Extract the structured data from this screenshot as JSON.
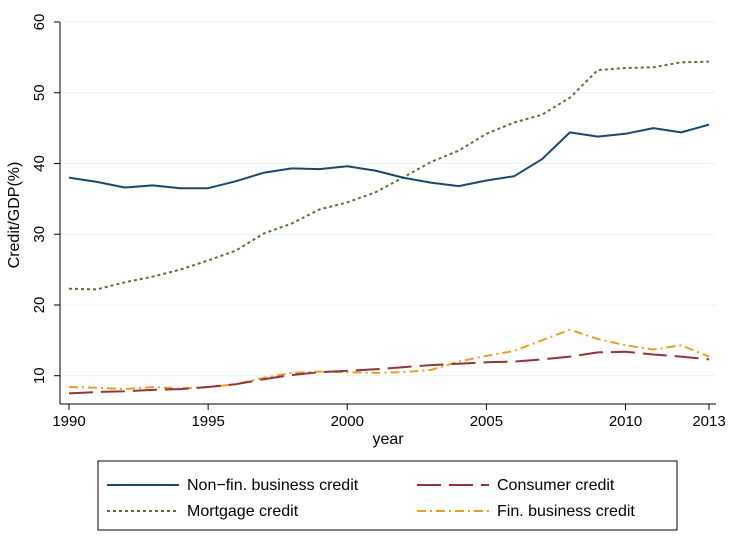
{
  "chart_data": {
    "type": "line",
    "xlabel": "year",
    "ylabel": "Credit/GDP(%)",
    "xlim": [
      1990,
      2013
    ],
    "ylim": [
      6,
      60
    ],
    "x_ticks": [
      "1990",
      "1995",
      "2000",
      "2005",
      "2010",
      "2013"
    ],
    "y_ticks": [
      "10",
      "20",
      "30",
      "40",
      "50",
      "60"
    ],
    "grid": "horizontal",
    "legend_position": "bottom",
    "x": [
      1990,
      1991,
      1992,
      1993,
      1994,
      1995,
      1996,
      1997,
      1998,
      1999,
      2000,
      2001,
      2002,
      2003,
      2004,
      2005,
      2006,
      2007,
      2008,
      2009,
      2010,
      2011,
      2012,
      2013
    ],
    "series": [
      {
        "name": "Non−fin. business credit",
        "color": "#1a476f",
        "dash": "solid",
        "values": [
          38.0,
          37.4,
          36.6,
          36.9,
          36.5,
          36.5,
          37.5,
          38.7,
          39.3,
          39.2,
          39.6,
          39.0,
          38.0,
          37.3,
          36.8,
          37.6,
          38.2,
          40.6,
          44.4,
          43.8,
          44.2,
          45.0,
          44.4,
          45.5
        ]
      },
      {
        "name": "Consumer credit",
        "color": "#90353b",
        "dash": "longdash",
        "values": [
          7.5,
          7.7,
          7.8,
          8.0,
          8.1,
          8.4,
          8.8,
          9.5,
          10.1,
          10.5,
          10.7,
          10.9,
          11.2,
          11.5,
          11.7,
          11.9,
          12.0,
          12.3,
          12.7,
          13.3,
          13.4,
          13.0,
          12.7,
          12.3
        ]
      },
      {
        "name": "Mortgage credit",
        "color": "#55752f",
        "dash": "dot",
        "values": [
          22.3,
          22.2,
          23.2,
          24.0,
          25.0,
          26.3,
          27.7,
          30.1,
          31.5,
          33.5,
          34.5,
          35.9,
          38.0,
          40.2,
          41.8,
          44.2,
          45.8,
          46.9,
          49.3,
          53.2,
          53.5,
          53.6,
          54.3,
          54.4
        ]
      },
      {
        "name": "Fin. business credit",
        "color": "#e8a020",
        "dash": "dashdot",
        "values": [
          8.4,
          8.3,
          8.1,
          8.4,
          8.2,
          8.4,
          8.8,
          9.7,
          10.4,
          10.6,
          10.5,
          10.4,
          10.5,
          10.8,
          12.0,
          12.8,
          13.5,
          15.0,
          16.5,
          15.2,
          14.3,
          13.7,
          14.3,
          12.7
        ]
      }
    ]
  }
}
